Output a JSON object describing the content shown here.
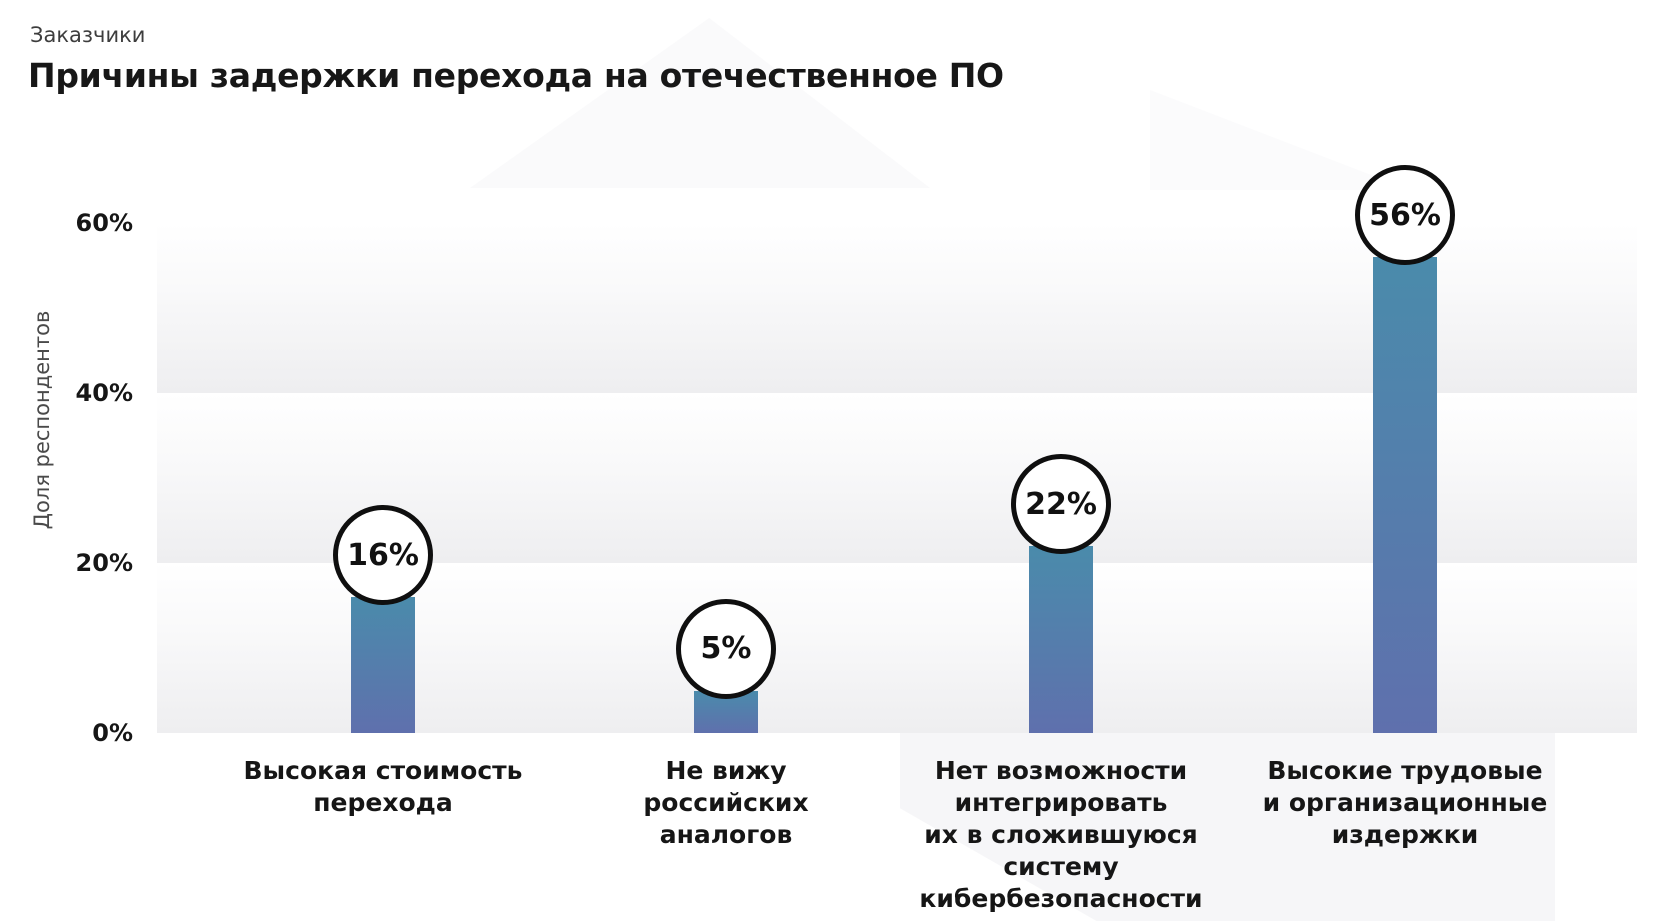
{
  "header": {
    "eyebrow": "Заказчики",
    "title": "Причины задержки перехода на отечественное ПО"
  },
  "chart_data": {
    "type": "bar",
    "title": "Причины задержки перехода на отечественное ПО",
    "subtitle": "Заказчики",
    "xlabel": "",
    "ylabel": "Доля респондентов",
    "unit": "%",
    "ylim": [
      0,
      64
    ],
    "ytick_values": [
      0,
      20,
      40,
      60
    ],
    "yticks": [
      "0%",
      "20%",
      "40%",
      "60%"
    ],
    "grid": "horizontal gradient bands every 20%",
    "legend": "none",
    "categories": [
      "Высокая стоимость перехода",
      "Не вижу российских аналогов",
      "Нет возможности интегрировать их в сложившуюся систему кибербезопасности",
      "Высокие трудовые и организационные издержки"
    ],
    "category_lines": [
      "Высокая стоимость\nперехода",
      "Не вижу\nроссийских\nаналогов",
      "Нет возможности\nинтегрировать\nих в сложившуюся\nсистему\nкибербезопасности",
      "Высокие трудовые\nи организационные\nиздержки"
    ],
    "values": [
      16,
      5,
      22,
      56
    ],
    "value_labels": [
      "16%",
      "5%",
      "22%",
      "56%"
    ],
    "colors": {
      "bar_gradient_top": "#4A8BAB",
      "bar_gradient_bottom": "#5F70AD",
      "badge_background": "#FFFFFF",
      "badge_border": "#111111",
      "band_shade": "#EEEEF0",
      "text": "#161616"
    }
  }
}
